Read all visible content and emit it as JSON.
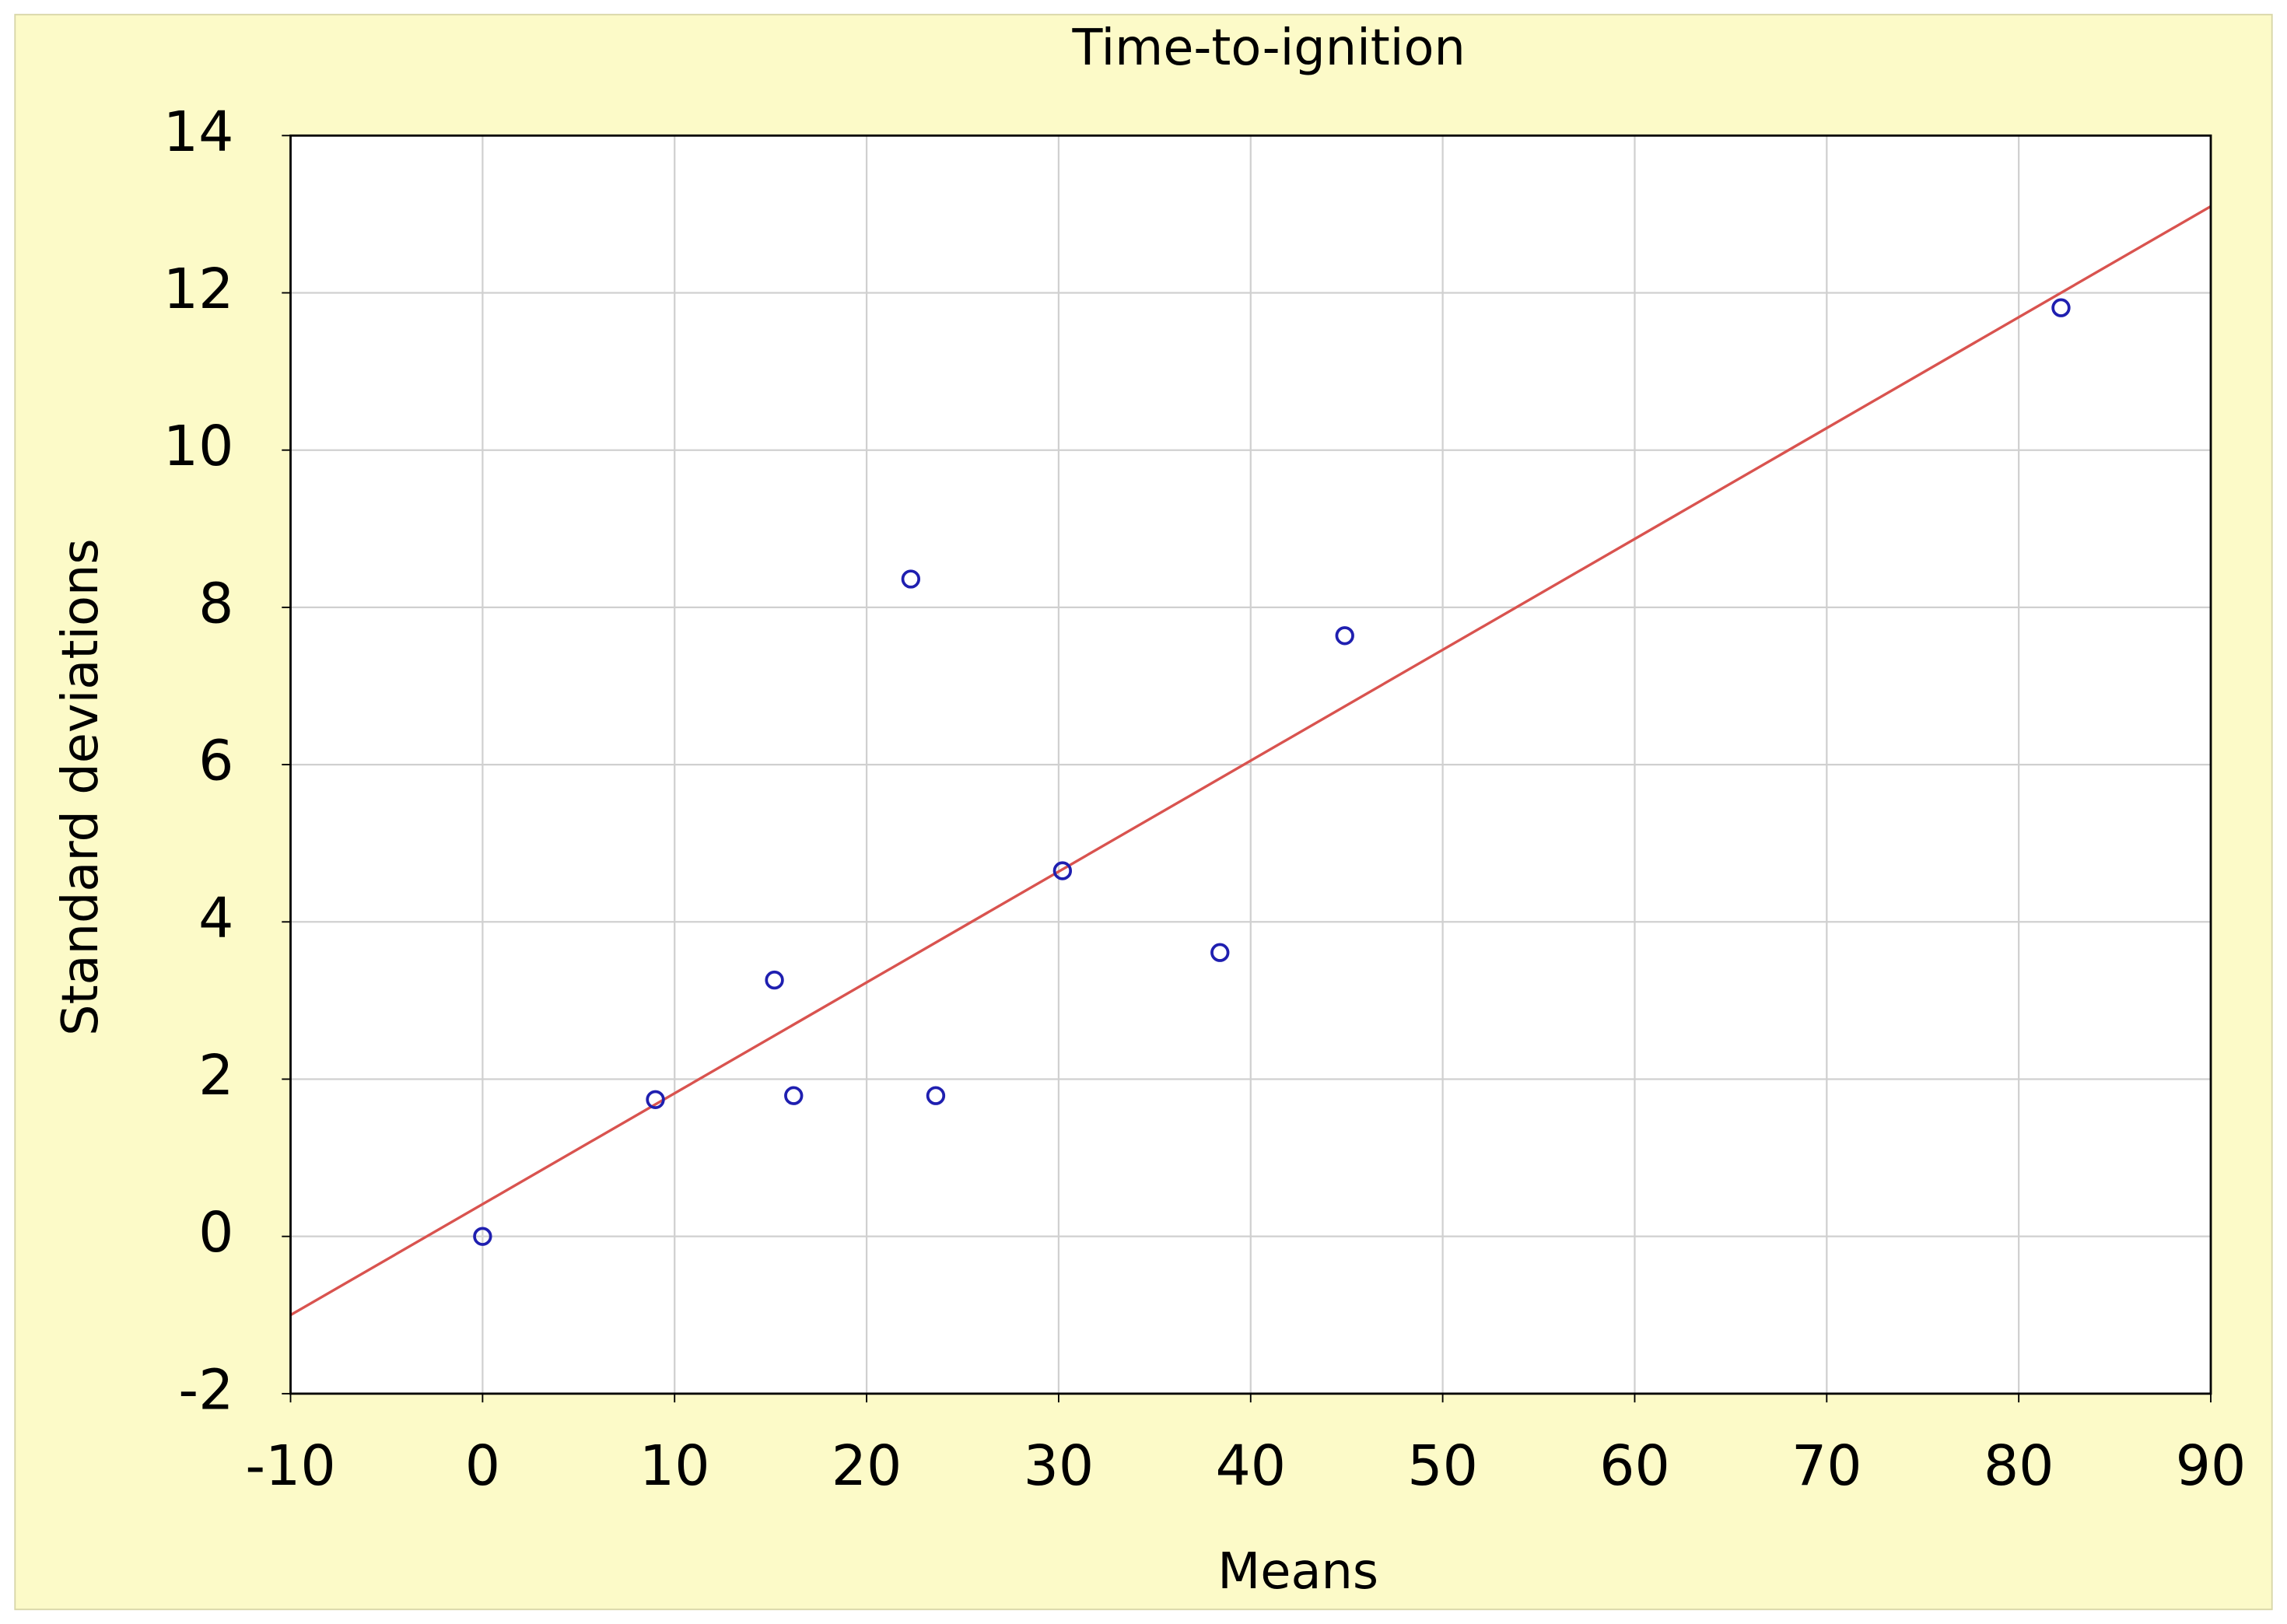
{
  "chart_data": {
    "type": "scatter",
    "title": "Time-to-ignition",
    "xlabel": "Means",
    "ylabel": "Standard deviations",
    "x": [
      0,
      9.0,
      15.2,
      16.2,
      22.3,
      23.6,
      30.2,
      38.4,
      44.9,
      82.2
    ],
    "values": [
      0,
      1.74,
      3.26,
      1.79,
      8.36,
      1.79,
      4.65,
      3.61,
      7.64,
      11.81
    ],
    "color": "#1f1fb0",
    "trend_line": {
      "color": "#d9534f",
      "x": [
        -10,
        90
      ],
      "y": [
        -1.0,
        13.1
      ]
    },
    "xlim": [
      -10,
      90
    ],
    "xticks": [
      -10,
      0,
      10,
      20,
      30,
      40,
      50,
      60,
      70,
      80,
      90
    ],
    "ylim": [
      -2,
      14
    ],
    "yticks": [
      -2,
      0,
      2,
      4,
      6,
      8,
      10,
      12,
      14
    ],
    "grid": true
  }
}
